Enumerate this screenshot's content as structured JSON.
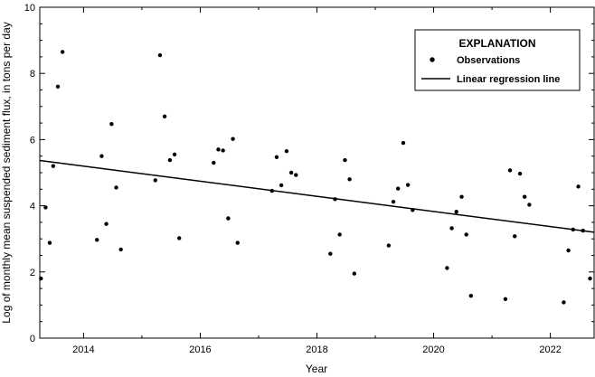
{
  "chart_data": {
    "type": "scatter",
    "xlabel": "Year",
    "ylabel": "Log of monthly mean suspended sediment flux, in tons per day",
    "xlim": [
      2013.25,
      2022.75
    ],
    "ylim": [
      0,
      10
    ],
    "x_ticks": [
      2014,
      2016,
      2018,
      2020,
      2022
    ],
    "y_ticks": [
      0,
      2,
      4,
      6,
      8,
      10
    ],
    "grid": false,
    "legend": {
      "title": "EXPLANATION",
      "placement": "top-right",
      "entries": [
        {
          "label": "Observations",
          "marker": "dot"
        },
        {
          "label": "Linear regression line",
          "marker": "line"
        }
      ]
    },
    "series": [
      {
        "name": "Observations",
        "kind": "scatter",
        "points": [
          [
            2013.27,
            1.8
          ],
          [
            2013.35,
            3.95
          ],
          [
            2013.42,
            2.88
          ],
          [
            2013.48,
            5.2
          ],
          [
            2013.56,
            7.6
          ],
          [
            2013.64,
            8.65
          ],
          [
            2014.23,
            2.97
          ],
          [
            2014.31,
            5.5
          ],
          [
            2014.39,
            3.45
          ],
          [
            2014.48,
            6.47
          ],
          [
            2014.56,
            4.55
          ],
          [
            2014.64,
            2.68
          ],
          [
            2015.23,
            4.77
          ],
          [
            2015.31,
            8.55
          ],
          [
            2015.39,
            6.7
          ],
          [
            2015.48,
            5.38
          ],
          [
            2015.56,
            5.55
          ],
          [
            2015.64,
            3.02
          ],
          [
            2016.23,
            5.3
          ],
          [
            2016.31,
            5.7
          ],
          [
            2016.39,
            5.67
          ],
          [
            2016.48,
            3.62
          ],
          [
            2016.56,
            6.02
          ],
          [
            2016.64,
            2.88
          ],
          [
            2017.23,
            4.45
          ],
          [
            2017.31,
            5.47
          ],
          [
            2017.39,
            4.62
          ],
          [
            2017.48,
            5.65
          ],
          [
            2017.56,
            5.0
          ],
          [
            2017.64,
            4.93
          ],
          [
            2018.23,
            2.55
          ],
          [
            2018.31,
            4.2
          ],
          [
            2018.39,
            3.13
          ],
          [
            2018.48,
            5.38
          ],
          [
            2018.56,
            4.8
          ],
          [
            2018.64,
            1.95
          ],
          [
            2019.23,
            2.8
          ],
          [
            2019.31,
            4.12
          ],
          [
            2019.39,
            4.52
          ],
          [
            2019.48,
            5.9
          ],
          [
            2019.56,
            4.63
          ],
          [
            2019.64,
            3.87
          ],
          [
            2020.23,
            2.12
          ],
          [
            2020.31,
            3.32
          ],
          [
            2020.39,
            3.82
          ],
          [
            2020.48,
            4.27
          ],
          [
            2020.56,
            3.13
          ],
          [
            2020.64,
            1.28
          ],
          [
            2021.23,
            1.18
          ],
          [
            2021.31,
            5.07
          ],
          [
            2021.39,
            3.08
          ],
          [
            2021.48,
            4.97
          ],
          [
            2021.56,
            4.27
          ],
          [
            2021.64,
            4.03
          ],
          [
            2022.23,
            1.08
          ],
          [
            2022.31,
            2.65
          ],
          [
            2022.39,
            3.28
          ],
          [
            2022.48,
            4.58
          ],
          [
            2022.56,
            3.25
          ],
          [
            2022.68,
            1.8
          ]
        ]
      },
      {
        "name": "Linear regression line",
        "kind": "line",
        "points": [
          [
            2013.25,
            5.37
          ],
          [
            2022.75,
            3.2
          ]
        ]
      }
    ]
  }
}
